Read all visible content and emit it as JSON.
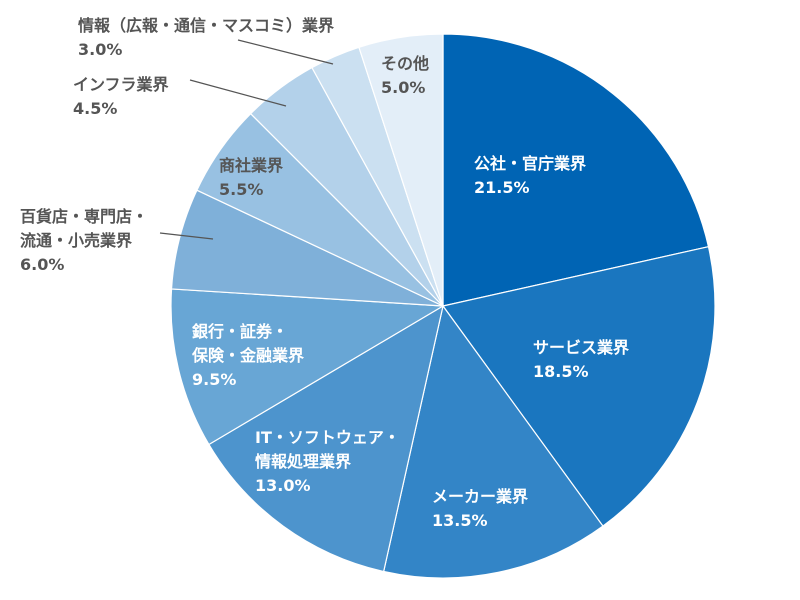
{
  "chart_data": {
    "type": "pie",
    "start": "top",
    "direction": "clockwise",
    "slices": [
      {
        "label_lines": [
          "公社・官庁業界"
        ],
        "value": 21.5,
        "pct": "21.5%",
        "color": "#0064b4",
        "text_color": "#ffffff"
      },
      {
        "label_lines": [
          "サービス業界"
        ],
        "value": 18.5,
        "pct": "18.5%",
        "color": "#1a76bf",
        "text_color": "#ffffff"
      },
      {
        "label_lines": [
          "メーカー業界"
        ],
        "value": 13.5,
        "pct": "13.5%",
        "color": "#3385c7",
        "text_color": "#ffffff"
      },
      {
        "label_lines": [
          "IT・ソフトウェア・",
          "情報処理業界"
        ],
        "value": 13.0,
        "pct": "13.0%",
        "color": "#4d94cd",
        "text_color": "#ffffff"
      },
      {
        "label_lines": [
          "銀行・証券・",
          "保険・金融業界"
        ],
        "value": 9.5,
        "pct": "9.5%",
        "color": "#68a6d5",
        "text_color": "#ffffff"
      },
      {
        "label_lines": [
          "百貨店・専門店・",
          "流通・小売業界"
        ],
        "value": 6.0,
        "pct": "6.0%",
        "color": "#7fb0d9",
        "text_color": "#555555"
      },
      {
        "label_lines": [
          "商社業界"
        ],
        "value": 5.5,
        "pct": "5.5%",
        "color": "#98c1e2",
        "text_color": "#555555"
      },
      {
        "label_lines": [
          "インフラ業界"
        ],
        "value": 4.5,
        "pct": "4.5%",
        "color": "#b3d1ea",
        "text_color": "#555555"
      },
      {
        "label_lines": [
          "情報（広報・通信・マスコミ）業界"
        ],
        "value": 3.0,
        "pct": "3.0%",
        "color": "#cbe0f1",
        "text_color": "#555555"
      },
      {
        "label_lines": [
          "その他"
        ],
        "value": 5.0,
        "pct": "5.0%",
        "color": "#e3eef8",
        "text_color": "#555555"
      }
    ]
  }
}
